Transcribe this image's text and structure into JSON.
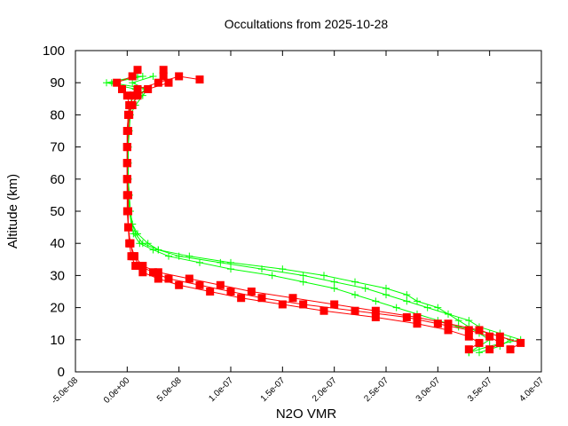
{
  "chart_data": {
    "type": "scatter",
    "title": "Occultations from 2025-10-28",
    "xlabel": "N2O VMR",
    "ylabel": "Altitude (km)",
    "xlim": [
      -5e-08,
      4e-07
    ],
    "ylim": [
      0,
      100
    ],
    "xticks": [
      -5e-08,
      0,
      5e-08,
      1e-07,
      1.5e-07,
      2e-07,
      2.5e-07,
      3e-07,
      3.5e-07,
      4e-07
    ],
    "xtick_labels": [
      "-5.0e-08",
      "0.0e+00",
      "5.0e-08",
      "1.0e-07",
      "1.5e-07",
      "2.0e-07",
      "2.5e-07",
      "3.0e-07",
      "3.5e-07",
      "4.0e-07"
    ],
    "yticks": [
      0,
      10,
      20,
      30,
      40,
      50,
      60,
      70,
      80,
      90,
      100
    ],
    "ytick_labels": [
      "0",
      "10",
      "20",
      "30",
      "40",
      "50",
      "60",
      "70",
      "80",
      "90",
      "100"
    ],
    "grid": false,
    "colors": {
      "green": "#00ff00",
      "red": "#ff0000"
    },
    "series": [
      {
        "color": "green",
        "marker": "plus",
        "altitude": [
          6,
          8,
          10,
          12,
          14,
          16,
          18,
          20,
          22,
          24,
          26,
          28,
          30,
          32,
          34,
          36,
          38,
          40,
          43,
          46,
          50,
          55,
          60,
          65,
          70,
          75,
          80,
          83,
          86,
          88,
          90,
          92
        ],
        "x": [
          3.3e-07,
          3.4e-07,
          3.5e-07,
          3.4e-07,
          3.3e-07,
          3.2e-07,
          3.1e-07,
          2.9e-07,
          2.7e-07,
          2.5e-07,
          2.3e-07,
          2e-07,
          1.7e-07,
          1.3e-07,
          9e-08,
          5e-08,
          3e-08,
          1.5e-08,
          8e-09,
          5e-09,
          3e-09,
          2e-09,
          1e-09,
          1e-09,
          1e-09,
          1e-09,
          2e-09,
          3e-09,
          5e-09,
          8e-09,
          -2e-08,
          1e-08
        ]
      },
      {
        "color": "green",
        "marker": "plus",
        "altitude": [
          6,
          8,
          10,
          12,
          14,
          16,
          18,
          20,
          22,
          24,
          26,
          28,
          30,
          32,
          34,
          36,
          38,
          40,
          43,
          46,
          50,
          55,
          60,
          65,
          70,
          75,
          80,
          83,
          86,
          88,
          90,
          92
        ],
        "x": [
          3.4e-07,
          3.6e-07,
          3.7e-07,
          3.5e-07,
          3.2e-07,
          3e-07,
          2.8e-07,
          2.6e-07,
          2.4e-07,
          2.2e-07,
          2e-07,
          1.7e-07,
          1.4e-07,
          1e-07,
          7e-08,
          4e-08,
          2.5e-08,
          1.2e-08,
          6e-09,
          4e-09,
          2e-09,
          1e-09,
          1e-09,
          0,
          1e-09,
          2e-09,
          3e-09,
          8e-09,
          1.5e-08,
          2e-08,
          -1.5e-08,
          1.5e-08
        ]
      },
      {
        "color": "green",
        "marker": "plus",
        "altitude": [
          6,
          8,
          10,
          12,
          14,
          16,
          18,
          20,
          22,
          24,
          26,
          28,
          30,
          32,
          34,
          36,
          38,
          40,
          43,
          46,
          50,
          55,
          60,
          65,
          70,
          75,
          80,
          83,
          86,
          88,
          90,
          92
        ],
        "x": [
          3.3e-07,
          3.5e-07,
          3.8e-07,
          3.6e-07,
          3.4e-07,
          3.3e-07,
          3.1e-07,
          3e-07,
          2.8e-07,
          2.7e-07,
          2.5e-07,
          2.2e-07,
          1.9e-07,
          1.5e-07,
          1e-07,
          6e-08,
          3e-08,
          2e-08,
          1e-08,
          5e-09,
          3e-09,
          2e-09,
          1e-09,
          1e-09,
          1e-09,
          1e-09,
          2e-09,
          4e-09,
          1e-08,
          1.8e-08,
          5e-09,
          2.5e-08
        ]
      },
      {
        "color": "red",
        "marker": "square",
        "altitude": [
          7,
          9,
          11,
          13,
          15,
          17,
          19,
          21,
          23,
          25,
          27,
          29,
          31,
          33,
          36,
          40,
          45,
          50,
          55,
          60,
          65,
          70,
          75,
          80,
          83,
          86,
          88,
          90,
          92,
          91
        ],
        "x": [
          3.3e-07,
          3.4e-07,
          3.3e-07,
          3.1e-07,
          2.8e-07,
          2.4e-07,
          1.9e-07,
          1.5e-07,
          1.1e-07,
          8e-08,
          5e-08,
          3e-08,
          1.5e-08,
          8e-09,
          4e-09,
          2e-09,
          1e-09,
          1e-09,
          0,
          0,
          0,
          0,
          0,
          1e-09,
          3e-09,
          6e-09,
          1e-08,
          3e-08,
          5e-08,
          7e-08
        ]
      },
      {
        "color": "red",
        "marker": "square",
        "altitude": [
          7,
          9,
          11,
          13,
          15,
          17,
          19,
          21,
          23,
          25,
          27,
          29,
          31,
          33,
          36,
          40,
          45,
          50,
          55,
          60,
          65,
          70,
          75,
          80,
          83,
          86,
          88,
          90,
          92,
          94
        ],
        "x": [
          3.5e-07,
          3.6e-07,
          3.5e-07,
          3.3e-07,
          3e-07,
          2.7e-07,
          2.2e-07,
          1.7e-07,
          1.3e-07,
          1e-07,
          7e-08,
          4e-08,
          2.5e-08,
          1.2e-08,
          6e-09,
          3e-09,
          1e-09,
          1e-09,
          1e-09,
          0,
          0,
          0,
          1e-09,
          2e-09,
          5e-09,
          1e-08,
          2e-08,
          4e-08,
          3.5e-08,
          3.5e-08
        ]
      },
      {
        "color": "red",
        "marker": "square",
        "altitude": [
          7,
          9,
          11,
          13,
          15,
          17,
          19,
          21,
          23,
          25,
          27,
          29,
          31,
          33,
          36,
          40,
          45,
          50,
          55,
          60,
          65,
          70,
          75,
          80,
          83,
          86,
          88,
          90,
          92,
          94
        ],
        "x": [
          3.7e-07,
          3.8e-07,
          3.6e-07,
          3.4e-07,
          3.1e-07,
          2.8e-07,
          2.4e-07,
          2e-07,
          1.6e-07,
          1.2e-07,
          9e-08,
          6e-08,
          3e-08,
          1.5e-08,
          7e-09,
          3e-09,
          1e-09,
          0,
          0,
          0,
          0,
          0,
          0,
          1e-09,
          2e-09,
          0,
          -5e-09,
          -1e-08,
          5e-09,
          1e-08
        ]
      }
    ]
  }
}
